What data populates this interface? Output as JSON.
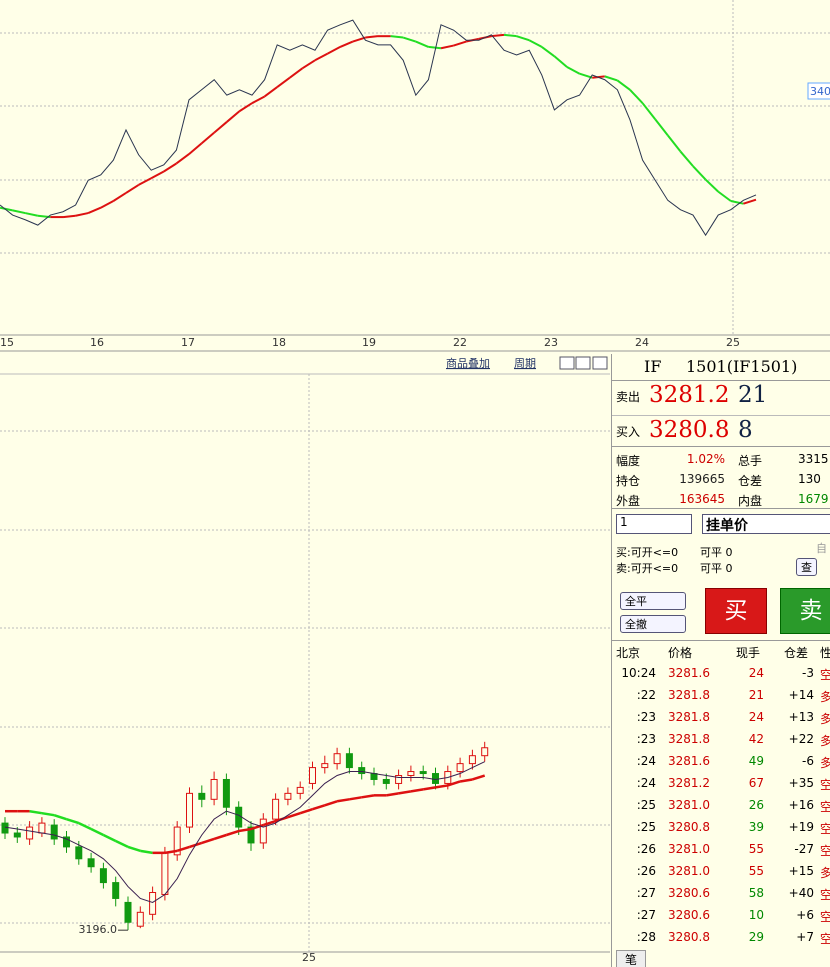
{
  "chart_data": [
    {
      "type": "line",
      "x_labels": [
        "15",
        "16",
        "17",
        "18",
        "19",
        "22",
        "23",
        "24",
        "25"
      ],
      "price_tag": "340",
      "ylim": [
        3000,
        3500
      ],
      "series": [
        {
          "color": "#2a3550",
          "values": [
            3194,
            3179,
            3172,
            3164,
            3179,
            3184,
            3194,
            3231,
            3239,
            3261,
            3306,
            3269,
            3246,
            3254,
            3276,
            3351,
            3366,
            3381,
            3358,
            3366,
            3358,
            3381,
            3433,
            3425,
            3433,
            3425,
            3455,
            3463,
            3470,
            3440,
            3433,
            3433,
            3410,
            3358,
            3381,
            3463,
            3455,
            3440,
            3440,
            3448,
            3425,
            3418,
            3425,
            3388,
            3336,
            3351,
            3358,
            3388,
            3381,
            3366,
            3321,
            3261,
            3231,
            3201,
            3187,
            3179,
            3149,
            3179,
            3187,
            3201,
            3209
          ]
        },
        {
          "up_color": "#dd1111",
          "down_color": "#22dd22",
          "values": [
            3190,
            3186,
            3182,
            3178,
            3176,
            3176,
            3178,
            3182,
            3190,
            3200,
            3212,
            3224,
            3234,
            3244,
            3256,
            3270,
            3286,
            3302,
            3318,
            3334,
            3346,
            3356,
            3370,
            3384,
            3398,
            3410,
            3420,
            3430,
            3438,
            3444,
            3446,
            3446,
            3444,
            3438,
            3430,
            3428,
            3432,
            3438,
            3442,
            3446,
            3448,
            3446,
            3440,
            3430,
            3416,
            3400,
            3390,
            3384,
            3386,
            3380,
            3366,
            3346,
            3322,
            3298,
            3274,
            3252,
            3232,
            3214,
            3200,
            3196,
            3202
          ]
        }
      ]
    },
    {
      "type": "candlestick",
      "x_labels": [
        "25"
      ],
      "ylim": [
        3186,
        3476
      ],
      "up_color": "#dd1111",
      "down_color": "#119911",
      "min_label": "3196.0",
      "min_index": 10,
      "open": [
        3250,
        3245,
        3242,
        3245,
        3249,
        3243,
        3238,
        3232,
        3227,
        3220,
        3210,
        3198,
        3204,
        3214,
        3234,
        3248,
        3265,
        3262,
        3272,
        3258,
        3248,
        3240,
        3252,
        3262,
        3265,
        3270,
        3278,
        3280,
        3285,
        3278,
        3275,
        3272,
        3270,
        3274,
        3276,
        3275,
        3270,
        3276,
        3280,
        3284
      ],
      "high": [
        3253,
        3248,
        3251,
        3253,
        3252,
        3246,
        3241,
        3235,
        3230,
        3223,
        3213,
        3208,
        3218,
        3238,
        3251,
        3268,
        3269,
        3276,
        3275,
        3261,
        3251,
        3255,
        3265,
        3268,
        3271,
        3281,
        3284,
        3288,
        3288,
        3281,
        3278,
        3275,
        3277,
        3279,
        3279,
        3278,
        3279,
        3283,
        3287,
        3291
      ],
      "low": [
        3242,
        3240,
        3239,
        3243,
        3239,
        3235,
        3229,
        3225,
        3217,
        3208,
        3196,
        3197,
        3201,
        3211,
        3231,
        3245,
        3258,
        3259,
        3254,
        3244,
        3236,
        3237,
        3249,
        3259,
        3262,
        3267,
        3275,
        3277,
        3275,
        3272,
        3269,
        3267,
        3267,
        3271,
        3272,
        3267,
        3267,
        3273,
        3277,
        3281
      ],
      "close": [
        3245,
        3243,
        3248,
        3250,
        3242,
        3238,
        3232,
        3228,
        3220,
        3212,
        3200,
        3205,
        3215,
        3235,
        3248,
        3265,
        3262,
        3272,
        3258,
        3248,
        3240,
        3252,
        3262,
        3265,
        3268,
        3278,
        3280,
        3285,
        3278,
        3275,
        3272,
        3270,
        3274,
        3276,
        3275,
        3270,
        3276,
        3280,
        3284,
        3288
      ],
      "series": [
        {
          "color": "#3a2050",
          "values": [
            3248,
            3247,
            3246,
            3245,
            3244,
            3242,
            3239,
            3236,
            3232,
            3226,
            3218,
            3212,
            3210,
            3214,
            3222,
            3234,
            3244,
            3252,
            3256,
            3254,
            3250,
            3248,
            3250,
            3254,
            3258,
            3264,
            3270,
            3274,
            3276,
            3276,
            3275,
            3274,
            3273,
            3273,
            3273,
            3272,
            3273,
            3275,
            3278,
            3281
          ]
        },
        {
          "up_color": "#dd1111",
          "down_color": "#22dd22",
          "values": [
            3256,
            3256,
            3256,
            3255,
            3254,
            3252,
            3250,
            3247,
            3244,
            3241,
            3238,
            3236,
            3235,
            3235,
            3236,
            3238,
            3240,
            3242,
            3244,
            3246,
            3247,
            3249,
            3251,
            3253,
            3255,
            3257,
            3259,
            3261,
            3262,
            3263,
            3264,
            3264,
            3265,
            3266,
            3267,
            3268,
            3269,
            3271,
            3272,
            3274
          ]
        }
      ]
    }
  ],
  "toolbar": [
    "商品叠加",
    "周期"
  ],
  "panel": {
    "contract": "IF",
    "code": "1501(IF1501)",
    "sell_label": "卖出",
    "sell_price": "3281.2",
    "sell_qty": "21",
    "buy_label": "买入",
    "buy_price": "3280.8",
    "buy_qty": "8",
    "stats": [
      [
        "幅度",
        "1.02%",
        "总手",
        "3315"
      ],
      [
        "持仓",
        "139665",
        "仓差",
        "130"
      ],
      [
        "外盘",
        "163645",
        "内盘",
        "1679"
      ]
    ],
    "qty": "1",
    "order_type": "挂单价",
    "buy_open": "买:可开<=0",
    "buy_close": "可平 0",
    "sell_open": "卖:可开<=0",
    "sell_close": "可平 0",
    "auto": "自",
    "query": "查",
    "close_all": "全平",
    "cancel_all": "全撤",
    "buy_btn": "买",
    "sell_btn": "卖",
    "tape_header": [
      "北京",
      "价格",
      "现手",
      "仓差",
      "性"
    ],
    "tape": [
      [
        "10:24",
        "3281.6",
        "24",
        "-3",
        "空"
      ],
      [
        ":22",
        "3281.8",
        "21",
        "+14",
        "多"
      ],
      [
        ":23",
        "3281.8",
        "24",
        "+13",
        "多"
      ],
      [
        ":23",
        "3281.8",
        "42",
        "+22",
        "多"
      ],
      [
        ":24",
        "3281.6",
        "49",
        "-6",
        "多"
      ],
      [
        ":24",
        "3281.2",
        "67",
        "+35",
        "空"
      ],
      [
        ":25",
        "3281.0",
        "26",
        "+16",
        "空"
      ],
      [
        ":25",
        "3280.8",
        "39",
        "+19",
        "空"
      ],
      [
        ":26",
        "3281.0",
        "55",
        "-27",
        "空"
      ],
      [
        ":26",
        "3281.0",
        "55",
        "+15",
        "多"
      ],
      [
        ":27",
        "3280.6",
        "58",
        "+40",
        "空"
      ],
      [
        ":27",
        "3280.6",
        "10",
        "+6",
        "空"
      ],
      [
        ":28",
        "3280.8",
        "29",
        "+7",
        "空"
      ]
    ],
    "tab": "笔"
  }
}
